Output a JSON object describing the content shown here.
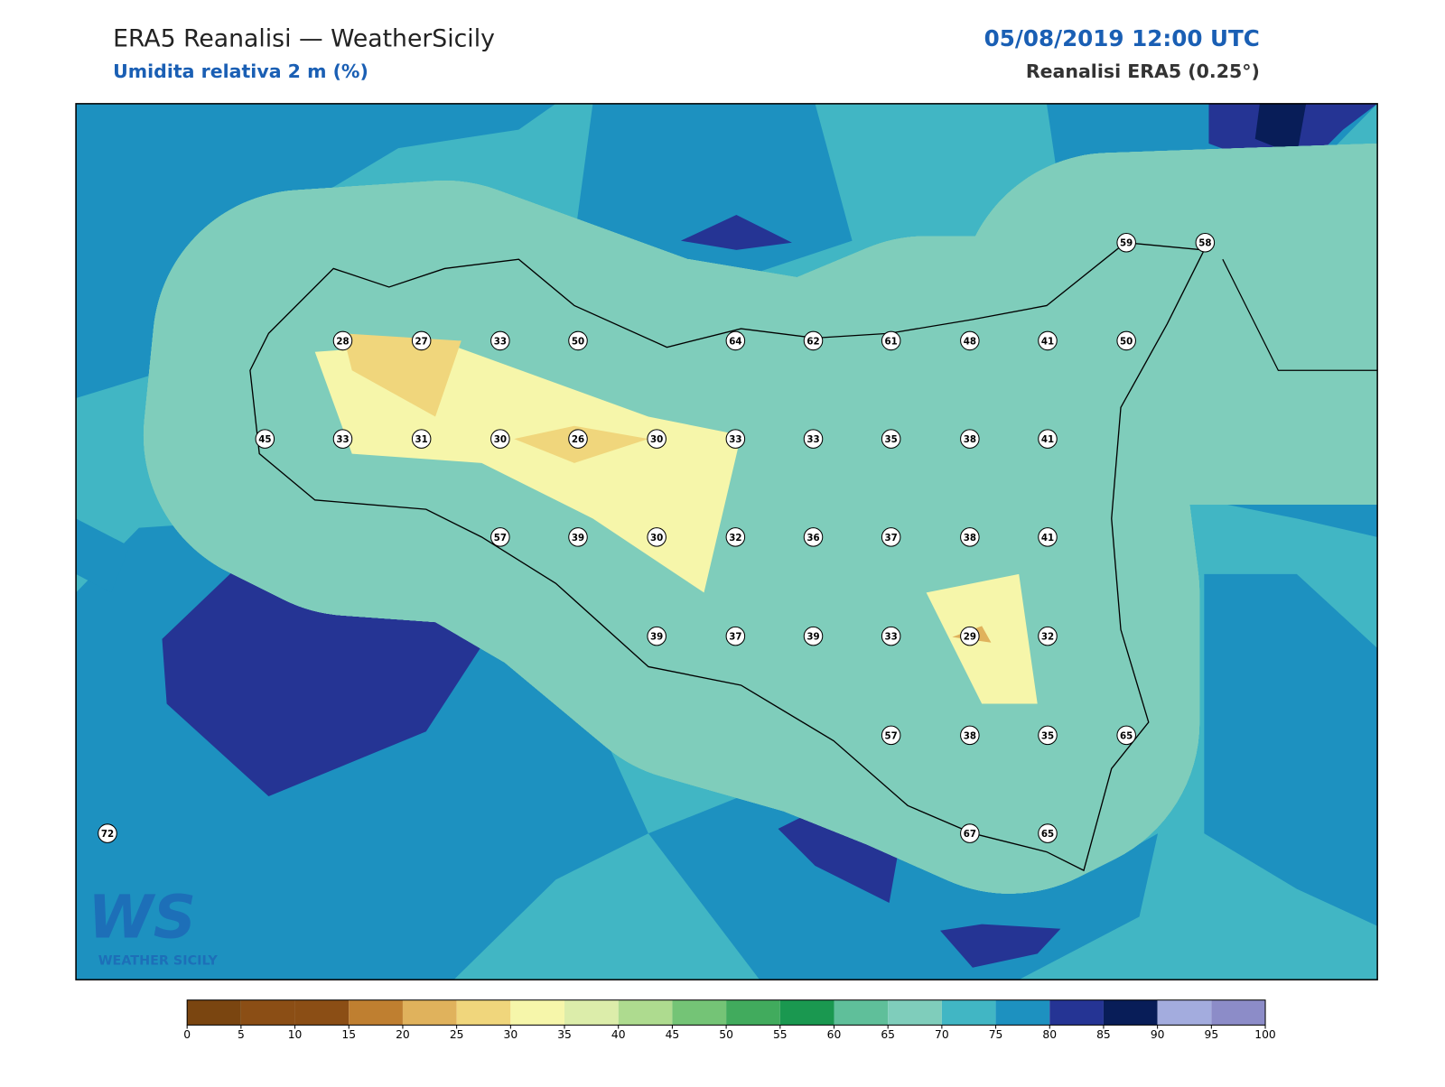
{
  "header": {
    "title": "ERA5 Reanalisi — WeatherSicily",
    "subtitle": "Umidita relativa 2 m (%)",
    "date": "05/08/2019 12:00 UTC",
    "source": "Reanalisi ERA5 (0.25°)"
  },
  "stations": [
    28,
    27,
    33,
    50,
    64,
    62,
    61,
    48,
    41,
    50,
    59,
    58,
    45,
    33,
    31,
    30,
    26,
    30,
    33,
    33,
    35,
    38,
    41,
    57,
    39,
    30,
    32,
    36,
    37,
    38,
    41,
    39,
    37,
    39,
    33,
    29,
    32,
    57,
    38,
    35,
    65,
    72,
    67,
    65
  ],
  "colorbar": {
    "ticks": [
      0,
      5,
      10,
      15,
      20,
      25,
      30,
      35,
      40,
      45,
      50,
      55,
      60,
      65,
      70,
      75,
      80,
      85,
      90,
      95,
      100
    ],
    "colors": [
      "#7a4510",
      "#8b4e15",
      "#8b4e15",
      "#bf7f30",
      "#e0b25c",
      "#f0d67c",
      "#f6f6aa",
      "#dcedaa",
      "#aedb8f",
      "#74c476",
      "#41ab5d",
      "#1a9850",
      "#5fbf9a",
      "#7fcdbb",
      "#41b6c4",
      "#1d91c0",
      "#253494",
      "#081d58",
      "#a3acde",
      "#8c8cc8"
    ]
  },
  "logo": {
    "mark": "WS",
    "name": "WEATHER SICILY"
  }
}
